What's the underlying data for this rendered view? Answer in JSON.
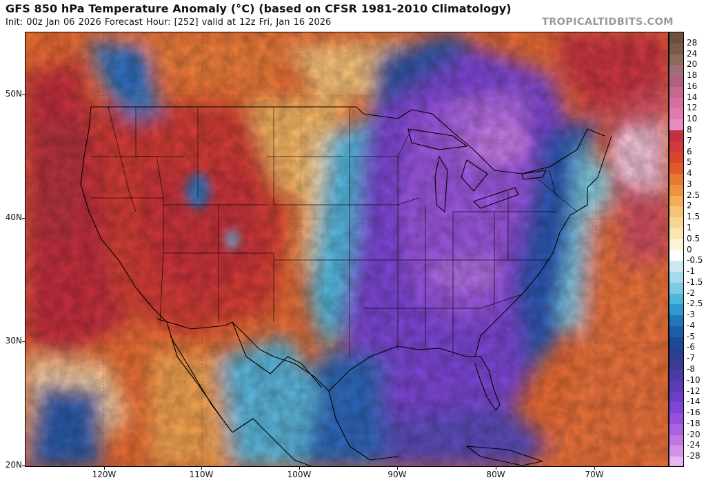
{
  "header": {
    "title": "GFS 850 hPa Temperature Anomaly (°C) (based on CFSR 1981-2010 Climatology)",
    "subtitle": "Init: 00z Jan 06 2026   Forecast Hour: [252]   valid at 12z Fri, Jan 16 2026",
    "credit": "TROPICALTIDBITS.COM"
  },
  "map": {
    "lon_range": [
      -128,
      -63
    ],
    "lat_range": [
      20,
      55
    ],
    "lat_labels": [
      "50N",
      "40N",
      "30N",
      "20N"
    ],
    "lon_labels": [
      "120W",
      "110W",
      "100W",
      "90W",
      "80W",
      "70W"
    ]
  },
  "colorbar": {
    "labels": [
      "28",
      "24",
      "20",
      "18",
      "16",
      "14",
      "12",
      "10",
      "8",
      "7",
      "6",
      "5",
      "4",
      "3",
      "2.5",
      "2",
      "1.5",
      "1",
      "0.5",
      "0",
      "-0.5",
      "-1",
      "-1.5",
      "-2",
      "-2.5",
      "-3",
      "-4",
      "-5",
      "-6",
      "-7",
      "-8",
      "-10",
      "-12",
      "-14",
      "-16",
      "-18",
      "-20",
      "-24",
      "-28"
    ],
    "colors": [
      "#7a5a48",
      "#8c6b5a",
      "#a06e7a",
      "#b3607e",
      "#c5678f",
      "#d76f9e",
      "#e07ab0",
      "#e88cc0",
      "#c3303d",
      "#d13a3d",
      "#d9452e",
      "#e05a2c",
      "#e67a35",
      "#ee9440",
      "#f4ad57",
      "#f7c274",
      "#f9d593",
      "#fbe5b2",
      "#fcf3d8",
      "#ffffff",
      "#cde8f0",
      "#a6d9ea",
      "#7ccbe3",
      "#4fb6db",
      "#2f9cd0",
      "#2278b8",
      "#1c5ea8",
      "#1d4a97",
      "#2a3f8e",
      "#3c3a96",
      "#4e3aa6",
      "#5b3cb7",
      "#6d3dc8",
      "#7f45d6",
      "#9551dc",
      "#ab62de",
      "#bf77e2",
      "#d394e8",
      "#e6b6ef"
    ]
  },
  "legend_data": [
    {
      "label": "28"
    },
    {
      "label": "-28"
    }
  ]
}
